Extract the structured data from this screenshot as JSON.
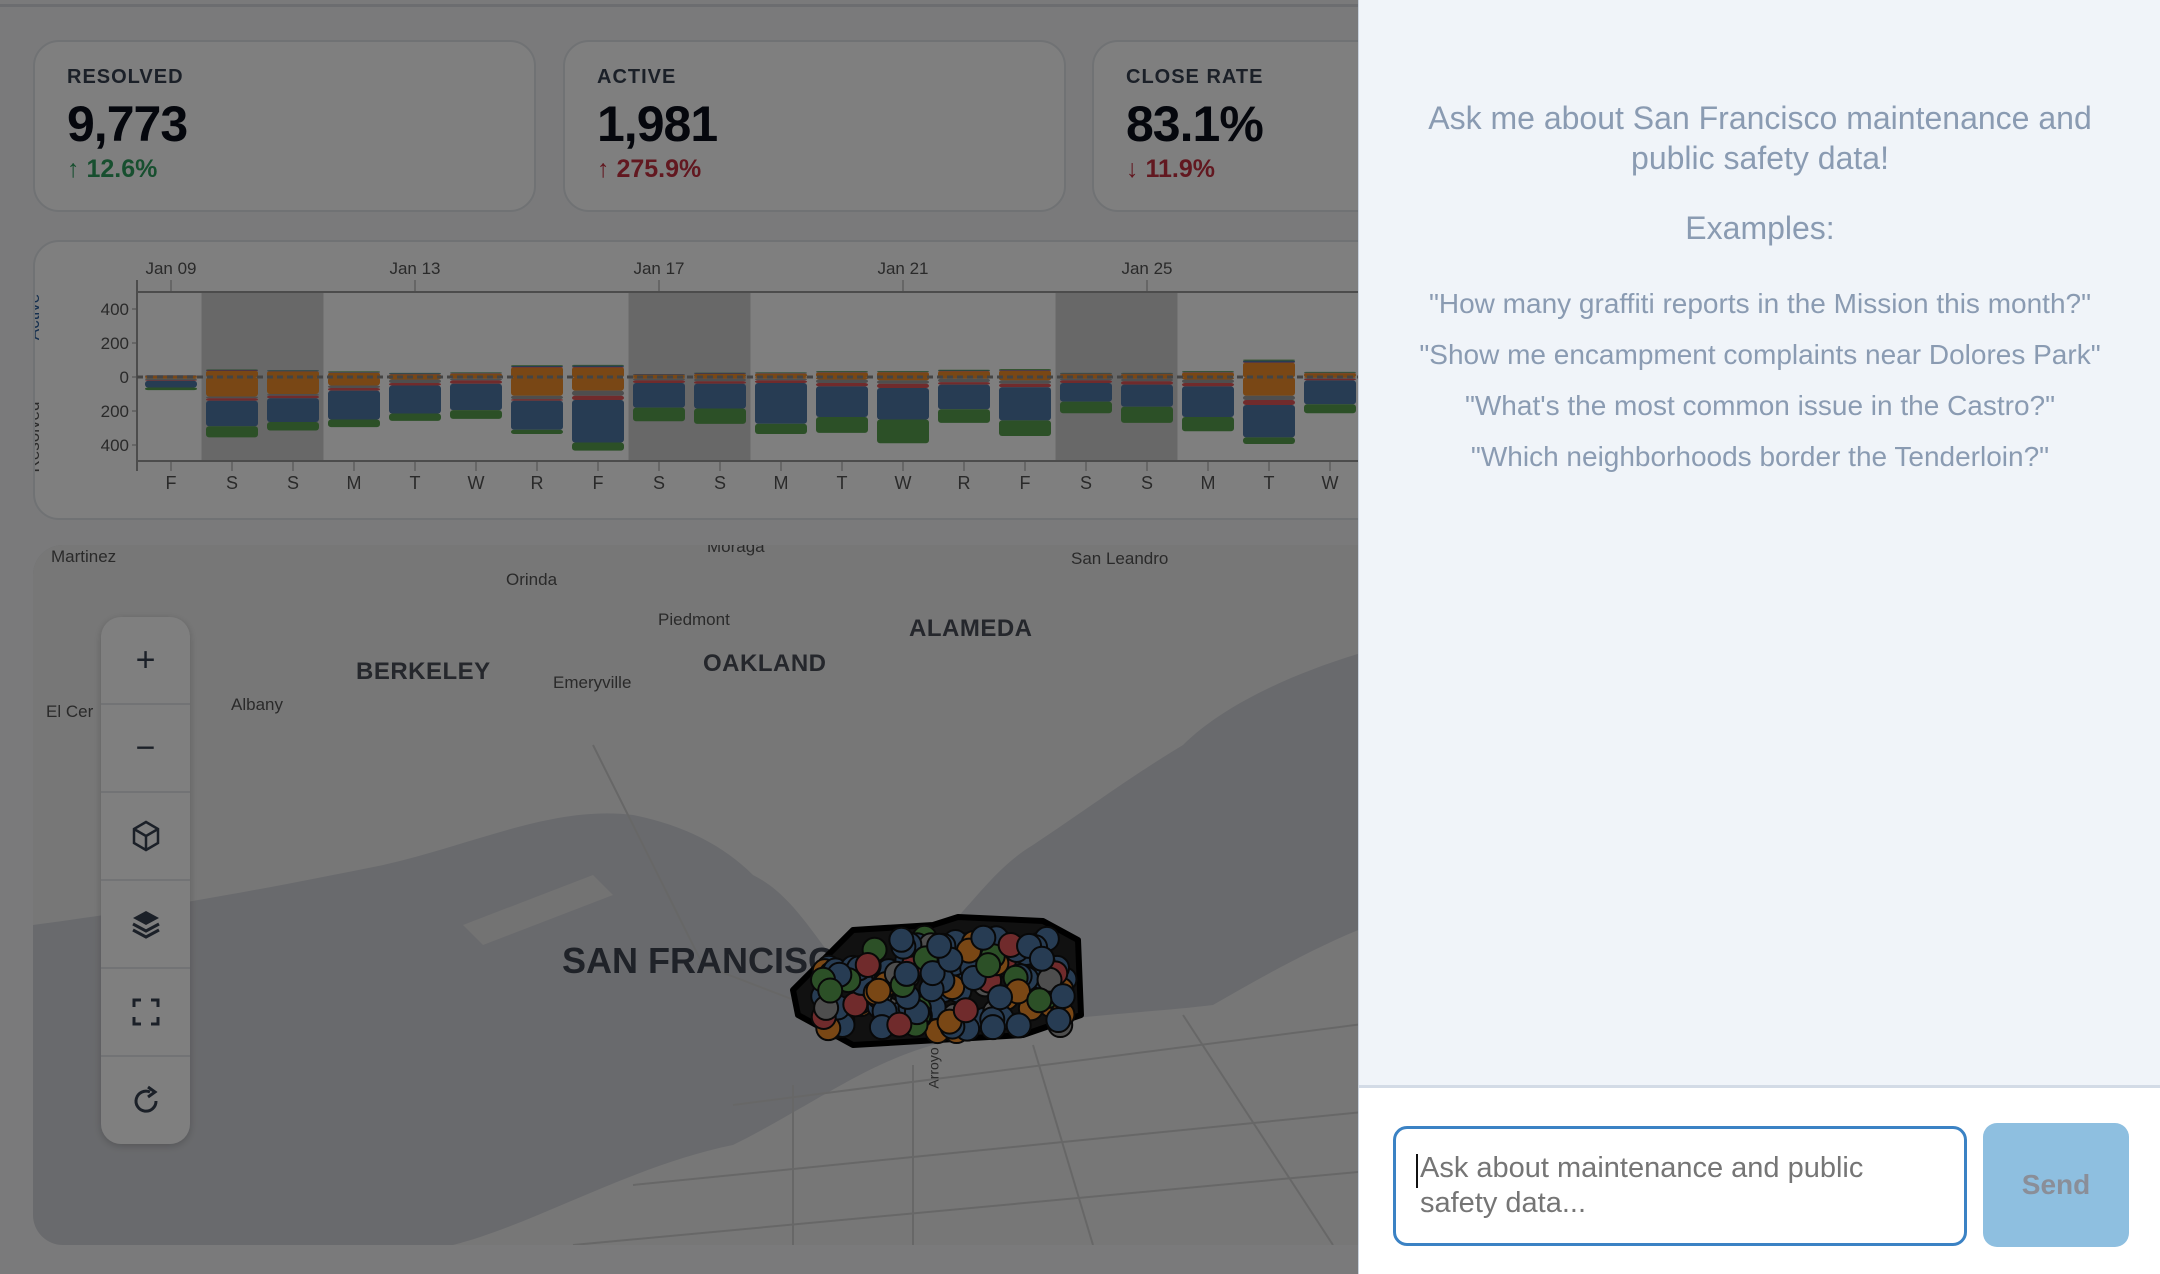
{
  "stats": [
    {
      "label": "RESOLVED",
      "value": "9,773",
      "change": "↑ 12.6%",
      "trend": "good"
    },
    {
      "label": "ACTIVE",
      "value": "1,981",
      "change": "↑ 275.9%",
      "trend": "bad"
    },
    {
      "label": "CLOSE RATE",
      "value": "83.1%",
      "change": "↓ 11.9%",
      "trend": "bad"
    }
  ],
  "chart_data": {
    "type": "bar",
    "ylabel_top": "Active",
    "ylabel_bottom": "Resolved",
    "yticks": [
      400,
      200,
      0,
      200,
      400
    ],
    "ylim": [
      -500,
      500
    ],
    "date_ticks": [
      {
        "label": "Jan 09",
        "day": 0
      },
      {
        "label": "Jan 13",
        "day": 4
      },
      {
        "label": "Jan 17",
        "day": 8
      },
      {
        "label": "Jan 21",
        "day": 12
      },
      {
        "label": "Jan 25",
        "day": 16
      }
    ],
    "days": [
      "F",
      "S",
      "S",
      "M",
      "T",
      "W",
      "R",
      "F",
      "S",
      "S",
      "M",
      "T",
      "W",
      "R",
      "F",
      "S",
      "S",
      "M",
      "T",
      "W"
    ],
    "weekend_shading": [
      [
        1,
        2
      ],
      [
        8,
        9
      ],
      [
        15,
        16
      ]
    ],
    "series_colors": {
      "orange": "#f28e2b",
      "gray": "#9c9c9c",
      "red": "#e15759",
      "blue": "#4e79a7",
      "green": "#59a14f"
    },
    "active": [
      [
        8,
        1,
        1,
        0
      ],
      [
        35,
        3,
        5,
        2
      ],
      [
        32,
        2,
        4,
        2
      ],
      [
        24,
        2,
        3,
        4
      ],
      [
        15,
        2,
        5,
        2
      ],
      [
        20,
        2,
        3,
        3
      ],
      [
        55,
        4,
        6,
        4
      ],
      [
        55,
        4,
        8,
        4
      ],
      [
        12,
        2,
        3,
        1
      ],
      [
        18,
        2,
        4,
        2
      ],
      [
        20,
        2,
        3,
        3
      ],
      [
        26,
        2,
        3,
        4
      ],
      [
        27,
        2,
        2,
        4
      ],
      [
        33,
        2,
        3,
        5
      ],
      [
        36,
        2,
        4,
        5
      ],
      [
        17,
        2,
        3,
        2
      ],
      [
        17,
        2,
        3,
        2
      ],
      [
        26,
        2,
        3,
        4
      ],
      [
        82,
        4,
        10,
        6
      ],
      [
        22,
        2,
        2,
        4
      ]
    ],
    "resolved": [
      [
        10,
        8,
        4,
        40,
        15
      ],
      [
        115,
        10,
        15,
        150,
        65
      ],
      [
        100,
        10,
        15,
        140,
        50
      ],
      [
        50,
        15,
        15,
        170,
        45
      ],
      [
        15,
        20,
        15,
        165,
        43
      ],
      [
        10,
        10,
        20,
        155,
        51
      ],
      [
        110,
        20,
        10,
        170,
        25
      ],
      [
        80,
        30,
        25,
        250,
        48
      ],
      [
        10,
        10,
        15,
        145,
        80
      ],
      [
        10,
        15,
        15,
        145,
        91
      ],
      [
        10,
        10,
        15,
        240,
        60
      ],
      [
        15,
        20,
        20,
        180,
        94
      ],
      [
        20,
        20,
        25,
        185,
        140
      ],
      [
        10,
        20,
        15,
        145,
        80
      ],
      [
        20,
        20,
        20,
        195,
        92
      ],
      [
        10,
        10,
        15,
        110,
        68
      ],
      [
        10,
        15,
        20,
        130,
        95
      ],
      [
        15,
        20,
        20,
        180,
        84
      ],
      [
        110,
        25,
        30,
        190,
        39
      ],
      [
        5,
        5,
        10,
        140,
        53
      ]
    ]
  },
  "map": {
    "labels": [
      "Martinez",
      "Moraga",
      "San Leandro",
      "Orinda",
      "Piedmont",
      "ALAMEDA",
      "BERKELEY",
      "OAKLAND",
      "Emeryville",
      "Albany",
      "El Cer",
      "SAN FRANCISCO",
      "Arroyo"
    ],
    "point_colors": [
      "#4e79a7",
      "#f28e2b",
      "#59a14f",
      "#9c9c9c",
      "#e15759"
    ],
    "controls": [
      "zoom-in",
      "zoom-out",
      "3d-cube",
      "layers",
      "fullscreen",
      "reset"
    ]
  },
  "chat": {
    "title": "Ask me about San Francisco maintenance and public safety data!",
    "examples_heading": "Examples:",
    "examples": [
      "\"How many graffiti reports in the Mission this month?\"",
      "\"Show me encampment complaints near Dolores Park\"",
      "\"What's the most common issue in the Castro?\"",
      "\"Which neighborhoods border the Tenderloin?\""
    ],
    "input_placeholder": "Ask about maintenance and public safety data...",
    "send_label": "Send"
  }
}
